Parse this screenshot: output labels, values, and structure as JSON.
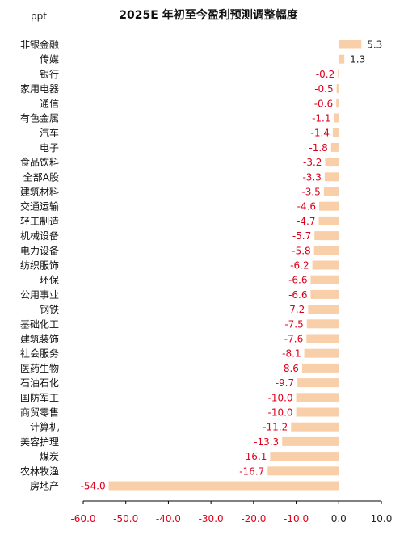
{
  "chart_data": {
    "type": "bar",
    "orientation": "horizontal",
    "title": "2025E 年初至今盈利预测调整幅度",
    "ylabel": "ppt",
    "xlim": [
      -60,
      10
    ],
    "xticks": [
      "-60.0",
      "-50.0",
      "-40.0",
      "-30.0",
      "-20.0",
      "-10.0",
      "0.0",
      "10.0"
    ],
    "bar_color": "#f9cfa9",
    "positive_label_color": "#222222",
    "negative_label_color": "#e0001b",
    "categories": [
      "非银金融",
      "传媒",
      "银行",
      "家用电器",
      "通信",
      "有色金属",
      "汽车",
      "电子",
      "食品饮料",
      "全部A股",
      "建筑材料",
      "交通运输",
      "轻工制造",
      "机械设备",
      "电力设备",
      "纺织服饰",
      "环保",
      "公用事业",
      "钢铁",
      "基础化工",
      "建筑装饰",
      "社会服务",
      "医药生物",
      "石油石化",
      "国防军工",
      "商贸零售",
      "计算机",
      "美容护理",
      "煤炭",
      "农林牧渔",
      "房地产"
    ],
    "values": [
      5.3,
      1.3,
      -0.2,
      -0.5,
      -0.6,
      -1.1,
      -1.4,
      -1.8,
      -3.2,
      -3.3,
      -3.5,
      -4.6,
      -4.7,
      -5.7,
      -5.8,
      -6.2,
      -6.6,
      -6.6,
      -7.2,
      -7.5,
      -7.6,
      -8.1,
      -8.6,
      -9.7,
      -10.0,
      -10.0,
      -11.2,
      -13.3,
      -16.1,
      -16.7,
      -54.0
    ],
    "value_labels": [
      "5.3",
      "1.3",
      "-0.2",
      "-0.5",
      "-0.6",
      "-1.1",
      "-1.4",
      "-1.8",
      "-3.2",
      "-3.3",
      "-3.5",
      "-4.6",
      "-4.7",
      "-5.7",
      "-5.8",
      "-6.2",
      "-6.6",
      "-6.6",
      "-7.2",
      "-7.5",
      "-7.6",
      "-8.1",
      "-8.6",
      "-9.7",
      "-10.0",
      "-10.0",
      "-11.2",
      "-13.3",
      "-16.1",
      "-16.7",
      "-54.0"
    ]
  }
}
